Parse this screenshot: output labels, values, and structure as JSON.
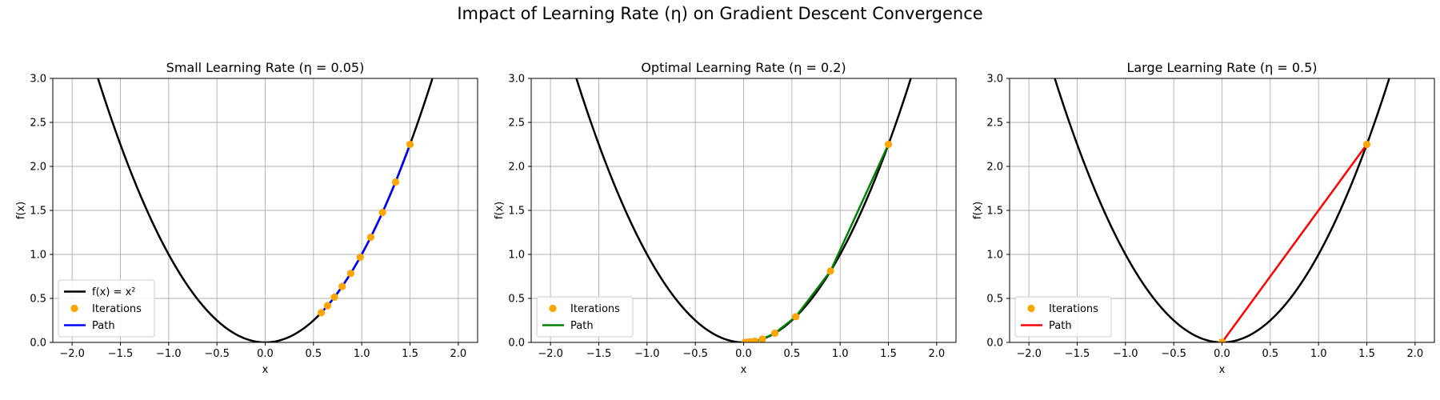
{
  "figure": {
    "suptitle": "Impact of Learning Rate (η) on Gradient Descent Convergence"
  },
  "chart_data": [
    {
      "type": "line",
      "title": "Small Learning Rate (η = 0.05)",
      "xlabel": "x",
      "ylabel": "f(x)",
      "xlim": [
        -2.2,
        2.2
      ],
      "ylim": [
        0,
        3.0
      ],
      "xticks": [
        "−2.0",
        "−1.5",
        "−1.0",
        "−0.5",
        "0.0",
        "0.5",
        "1.0",
        "1.5",
        "2.0"
      ],
      "yticks": [
        "0.0",
        "0.5",
        "1.0",
        "1.5",
        "2.0",
        "2.5",
        "3.0"
      ],
      "grid": true,
      "legend_position": "lower-left",
      "series": [
        {
          "name": "f(x) = x²",
          "kind": "curve",
          "function": "x^2",
          "color": "#000000"
        },
        {
          "name": "Iterations",
          "kind": "scatter",
          "color": "#ffa500",
          "x": [
            1.5,
            1.35,
            1.215,
            1.0935,
            0.98415,
            0.885735,
            0.797162,
            0.717445,
            0.645701,
            0.581131
          ],
          "y": [
            2.25,
            1.8225,
            1.4762,
            1.1957,
            0.9686,
            0.7845,
            0.6355,
            0.5147,
            0.4169,
            0.3377
          ]
        },
        {
          "name": "Path",
          "kind": "line",
          "color": "#0000ff",
          "x": [
            1.5,
            1.35,
            1.215,
            1.0935,
            0.98415,
            0.885735,
            0.797162,
            0.717445,
            0.645701,
            0.581131
          ],
          "y": [
            2.25,
            1.8225,
            1.4762,
            1.1957,
            0.9686,
            0.7845,
            0.6355,
            0.5147,
            0.4169,
            0.3377
          ]
        }
      ]
    },
    {
      "type": "line",
      "title": "Optimal Learning Rate (η = 0.2)",
      "xlabel": "x",
      "ylabel": "f(x)",
      "xlim": [
        -2.2,
        2.2
      ],
      "ylim": [
        0,
        3.0
      ],
      "xticks": [
        "−2.0",
        "−1.5",
        "−1.0",
        "−0.5",
        "0.0",
        "0.5",
        "1.0",
        "1.5",
        "2.0"
      ],
      "yticks": [
        "0.0",
        "0.5",
        "1.0",
        "1.5",
        "2.0",
        "2.5",
        "3.0"
      ],
      "grid": true,
      "legend_position": "lower-left",
      "series": [
        {
          "name": "",
          "kind": "curve",
          "function": "x^2",
          "color": "#000000"
        },
        {
          "name": "Iterations",
          "kind": "scatter",
          "color": "#ffa500",
          "x": [
            1.5,
            0.9,
            0.54,
            0.324,
            0.1944,
            0.11664,
            0.069984,
            0.04199,
            0.025194,
            0.015117
          ],
          "y": [
            2.25,
            0.81,
            0.2916,
            0.105,
            0.0378,
            0.0136,
            0.0049,
            0.0018,
            0.0006,
            0.0002
          ]
        },
        {
          "name": "Path",
          "kind": "line",
          "color": "#008000",
          "x": [
            1.5,
            0.9,
            0.54,
            0.324,
            0.1944,
            0.11664,
            0.069984,
            0.04199,
            0.025194,
            0.015117
          ],
          "y": [
            2.25,
            0.81,
            0.2916,
            0.105,
            0.0378,
            0.0136,
            0.0049,
            0.0018,
            0.0006,
            0.0002
          ]
        }
      ]
    },
    {
      "type": "line",
      "title": "Large Learning Rate (η = 0.5)",
      "xlabel": "x",
      "ylabel": "f(x)",
      "xlim": [
        -2.2,
        2.2
      ],
      "ylim": [
        0,
        3.0
      ],
      "xticks": [
        "−2.0",
        "−1.5",
        "−1.0",
        "−0.5",
        "0.0",
        "0.5",
        "1.0",
        "1.5",
        "2.0"
      ],
      "yticks": [
        "0.0",
        "0.5",
        "1.0",
        "1.5",
        "2.0",
        "2.5",
        "3.0"
      ],
      "grid": true,
      "legend_position": "lower-left",
      "series": [
        {
          "name": "",
          "kind": "curve",
          "function": "x^2",
          "color": "#000000"
        },
        {
          "name": "Iterations",
          "kind": "scatter",
          "color": "#ffa500",
          "x": [
            1.5,
            0.0,
            0.0,
            0.0,
            0.0,
            0.0,
            0.0,
            0.0,
            0.0,
            0.0
          ],
          "y": [
            2.25,
            0.0,
            0.0,
            0.0,
            0.0,
            0.0,
            0.0,
            0.0,
            0.0,
            0.0
          ]
        },
        {
          "name": "Path",
          "kind": "line",
          "color": "#ff0000",
          "x": [
            1.5,
            0.0,
            0.0,
            0.0,
            0.0,
            0.0,
            0.0,
            0.0,
            0.0,
            0.0
          ],
          "y": [
            2.25,
            0.0,
            0.0,
            0.0,
            0.0,
            0.0,
            0.0,
            0.0,
            0.0,
            0.0
          ]
        }
      ]
    }
  ]
}
